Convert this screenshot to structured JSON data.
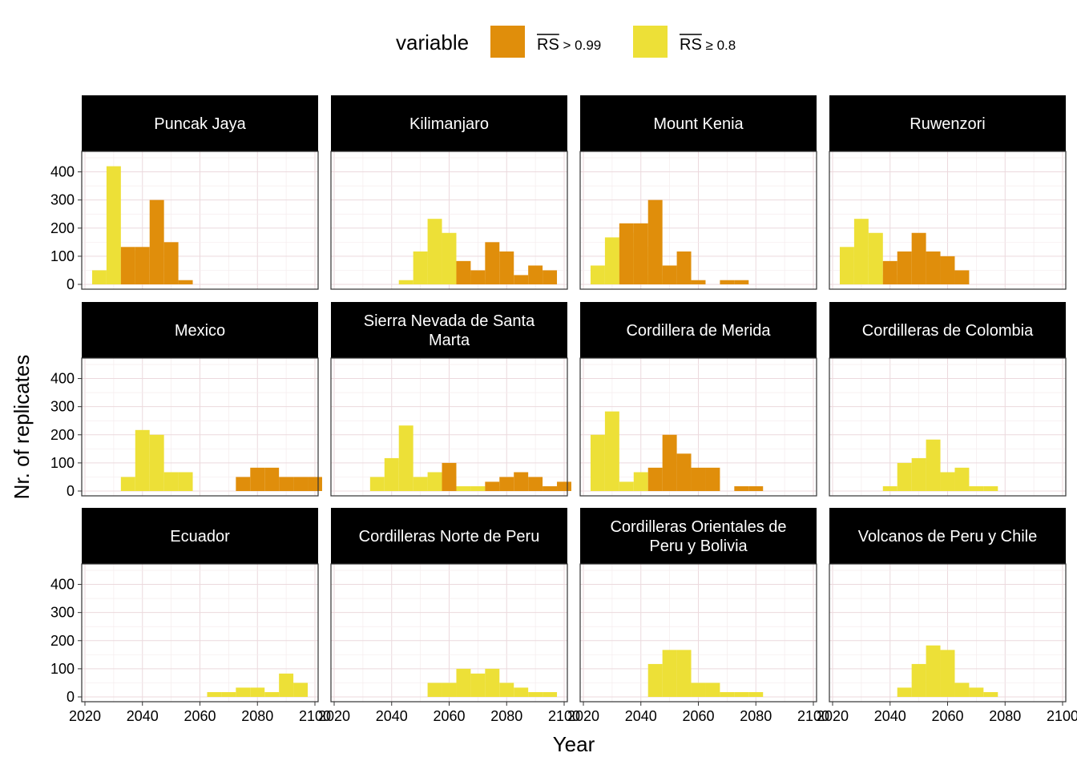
{
  "chart_data": {
    "type": "bar",
    "x_axis": {
      "label": "Year",
      "lim": [
        2020,
        2100
      ],
      "ticks": [
        "2020",
        "2040",
        "2060",
        "2080",
        "2100"
      ]
    },
    "y_axis": {
      "label": "Nr. of replicates",
      "lim": [
        0,
        450
      ],
      "ticks": [
        "0",
        "100",
        "200",
        "300",
        "400"
      ]
    },
    "bin_width": 5,
    "stacked": false,
    "grid": true,
    "legend": {
      "title": "variable",
      "position": "top",
      "items": [
        {
          "key": "rs099",
          "overline": "RS",
          "suffix": " > 0.99",
          "color": "#E08E0B"
        },
        {
          "key": "rs08",
          "overline": "RS",
          "suffix": " ≥ 0.8",
          "color": "#EDE037"
        }
      ]
    },
    "panels": [
      {
        "title": "Puncak Jaya",
        "rs08": [
          [
            2025,
            50
          ],
          [
            2030,
            420
          ],
          [
            2035,
            120
          ],
          [
            2040,
            15
          ]
        ],
        "rs099": [
          [
            2035,
            133
          ],
          [
            2040,
            133
          ],
          [
            2045,
            300
          ],
          [
            2050,
            150
          ],
          [
            2055,
            15
          ]
        ]
      },
      {
        "title": "Kilimanjaro",
        "rs08": [
          [
            2045,
            15
          ],
          [
            2050,
            117
          ],
          [
            2055,
            233
          ],
          [
            2060,
            183
          ],
          [
            2065,
            33
          ],
          [
            2070,
            17
          ]
        ],
        "rs099": [
          [
            2065,
            83
          ],
          [
            2070,
            50
          ],
          [
            2075,
            150
          ],
          [
            2080,
            117
          ],
          [
            2085,
            33
          ],
          [
            2090,
            67
          ],
          [
            2095,
            50
          ]
        ]
      },
      {
        "title": "Mount Kenia",
        "rs08": [
          [
            2025,
            67
          ],
          [
            2030,
            167
          ],
          [
            2035,
            183
          ],
          [
            2040,
            133
          ],
          [
            2045,
            33
          ],
          [
            2050,
            17
          ]
        ],
        "rs099": [
          [
            2035,
            217
          ],
          [
            2040,
            217
          ],
          [
            2045,
            300
          ],
          [
            2050,
            67
          ],
          [
            2055,
            117
          ],
          [
            2060,
            15
          ],
          [
            2070,
            15
          ],
          [
            2075,
            15
          ]
        ]
      },
      {
        "title": "Ruwenzori",
        "rs08": [
          [
            2025,
            133
          ],
          [
            2030,
            233
          ],
          [
            2035,
            183
          ],
          [
            2040,
            33
          ],
          [
            2045,
            15
          ]
        ],
        "rs099": [
          [
            2040,
            83
          ],
          [
            2045,
            117
          ],
          [
            2050,
            183
          ],
          [
            2055,
            117
          ],
          [
            2060,
            100
          ],
          [
            2065,
            50
          ]
        ]
      },
      {
        "title": "Mexico",
        "rs08": [
          [
            2035,
            50
          ],
          [
            2040,
            217
          ],
          [
            2045,
            200
          ],
          [
            2050,
            67
          ],
          [
            2055,
            67
          ]
        ],
        "rs099": [
          [
            2075,
            50
          ],
          [
            2080,
            83
          ],
          [
            2085,
            83
          ],
          [
            2090,
            50
          ],
          [
            2095,
            50
          ],
          [
            2100,
            50
          ]
        ]
      },
      {
        "title": "Sierra Nevada de Santa Marta",
        "rs08": [
          [
            2035,
            50
          ],
          [
            2040,
            117
          ],
          [
            2045,
            233
          ],
          [
            2050,
            50
          ],
          [
            2055,
            67
          ],
          [
            2060,
            50
          ],
          [
            2065,
            17
          ],
          [
            2070,
            17
          ],
          [
            2075,
            17
          ]
        ],
        "rs099": [
          [
            2060,
            100
          ],
          [
            2075,
            33
          ],
          [
            2080,
            50
          ],
          [
            2085,
            67
          ],
          [
            2090,
            50
          ],
          [
            2095,
            17
          ],
          [
            2100,
            33
          ]
        ]
      },
      {
        "title": "Cordillera de Merida",
        "rs08": [
          [
            2025,
            200
          ],
          [
            2030,
            283
          ],
          [
            2035,
            33
          ],
          [
            2040,
            67
          ]
        ],
        "rs099": [
          [
            2045,
            83
          ],
          [
            2050,
            200
          ],
          [
            2055,
            133
          ],
          [
            2060,
            83
          ],
          [
            2065,
            83
          ],
          [
            2075,
            17
          ],
          [
            2080,
            17
          ]
        ]
      },
      {
        "title": "Cordilleras de Colombia",
        "rs08": [
          [
            2040,
            17
          ],
          [
            2045,
            100
          ],
          [
            2050,
            117
          ],
          [
            2055,
            183
          ],
          [
            2060,
            67
          ],
          [
            2065,
            83
          ],
          [
            2070,
            17
          ],
          [
            2075,
            17
          ]
        ],
        "rs099": []
      },
      {
        "title": "Ecuador",
        "rs08": [
          [
            2065,
            17
          ],
          [
            2070,
            17
          ],
          [
            2075,
            33
          ],
          [
            2080,
            33
          ],
          [
            2085,
            17
          ],
          [
            2090,
            83
          ],
          [
            2095,
            50
          ]
        ],
        "rs099": []
      },
      {
        "title": "Cordilleras Norte de Peru",
        "rs08": [
          [
            2055,
            50
          ],
          [
            2060,
            50
          ],
          [
            2065,
            100
          ],
          [
            2070,
            83
          ],
          [
            2075,
            100
          ],
          [
            2080,
            50
          ],
          [
            2085,
            33
          ],
          [
            2090,
            17
          ],
          [
            2095,
            17
          ]
        ],
        "rs099": []
      },
      {
        "title": "Cordilleras Orientales de Peru y Bolivia",
        "rs08": [
          [
            2045,
            117
          ],
          [
            2050,
            167
          ],
          [
            2055,
            167
          ],
          [
            2060,
            50
          ],
          [
            2065,
            50
          ],
          [
            2070,
            17
          ],
          [
            2075,
            17
          ],
          [
            2080,
            17
          ]
        ],
        "rs099": []
      },
      {
        "title": "Volcanos de Peru y Chile",
        "rs08": [
          [
            2045,
            33
          ],
          [
            2050,
            117
          ],
          [
            2055,
            183
          ],
          [
            2060,
            167
          ],
          [
            2065,
            50
          ],
          [
            2070,
            33
          ],
          [
            2075,
            17
          ]
        ],
        "rs099": []
      }
    ]
  }
}
